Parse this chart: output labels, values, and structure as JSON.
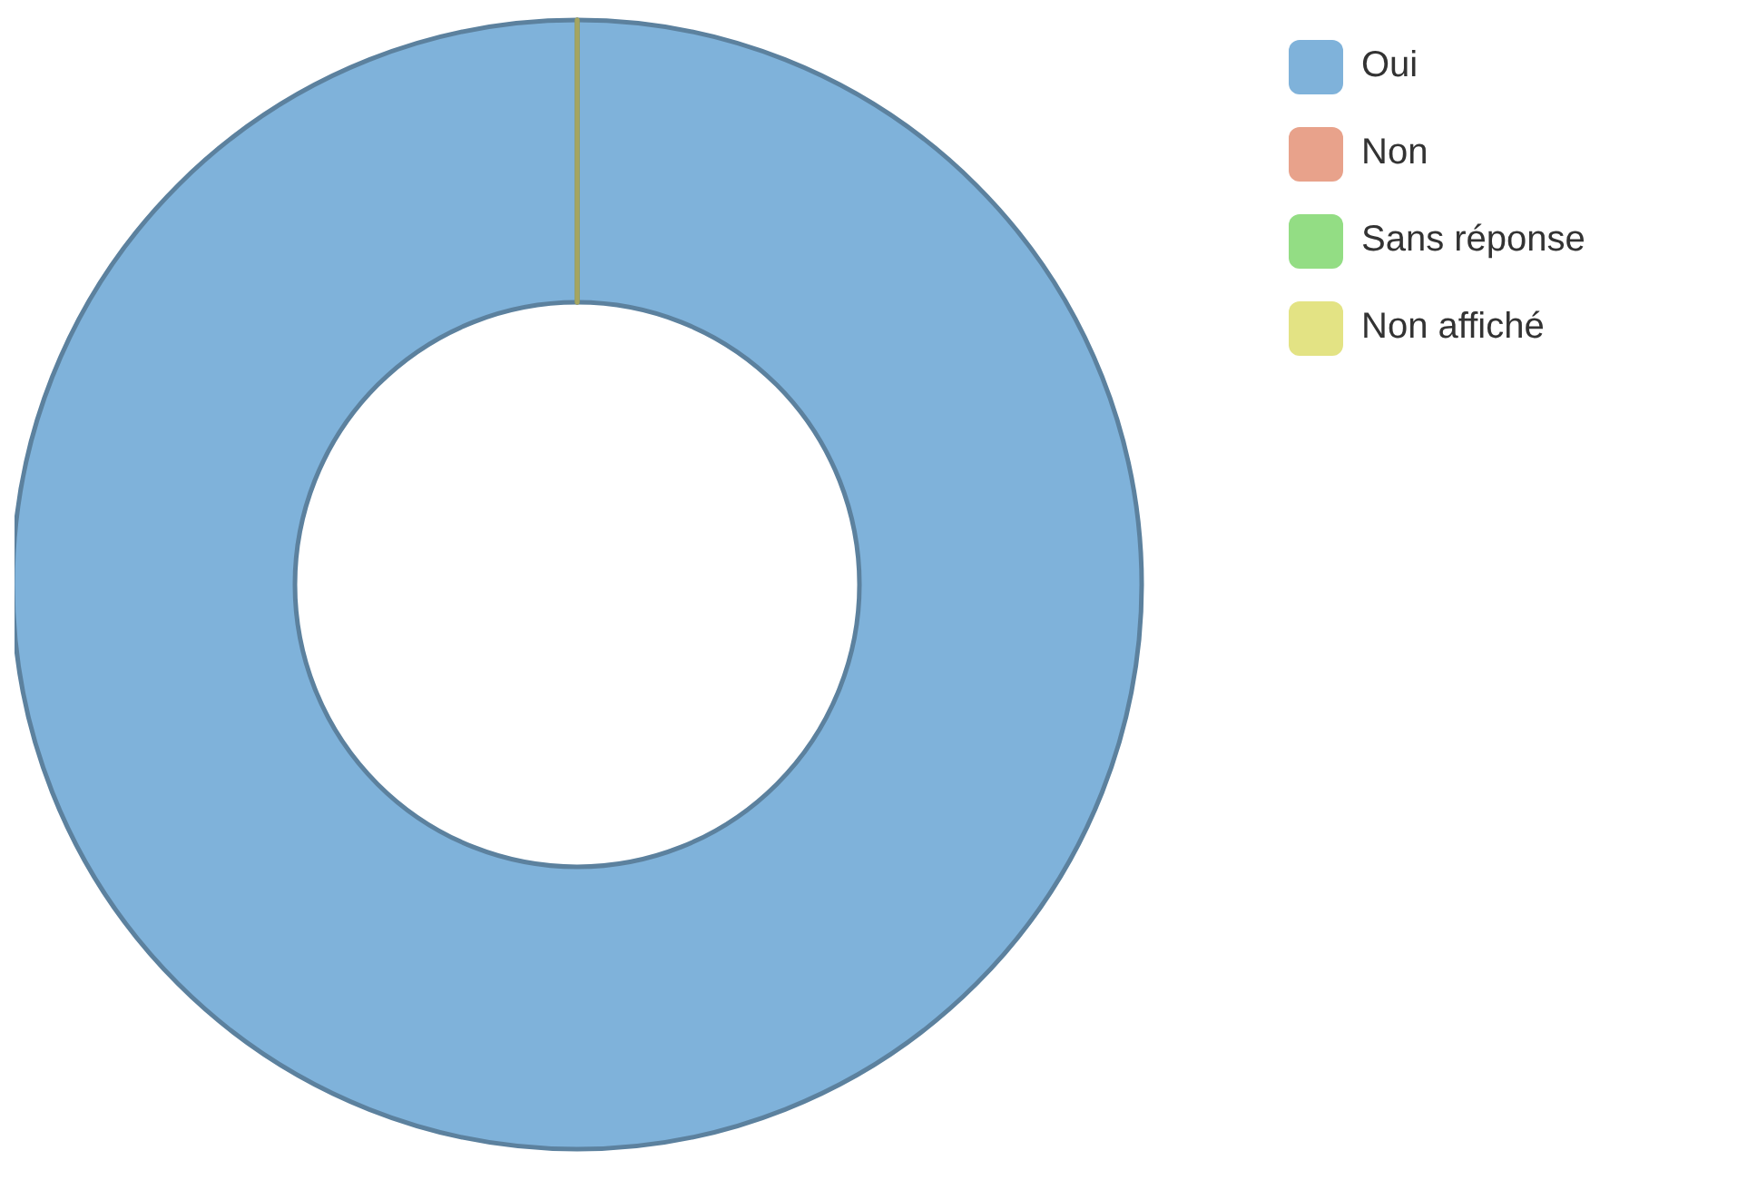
{
  "chart_data": {
    "type": "donut",
    "categories": [
      "Oui",
      "Non",
      "Sans réponse",
      "Non affiché"
    ],
    "values": [
      100,
      0,
      0,
      0
    ],
    "colors": [
      "#7fb2da",
      "#e8a28b",
      "#93dd84",
      "#e3e384"
    ],
    "legend": "top right"
  }
}
